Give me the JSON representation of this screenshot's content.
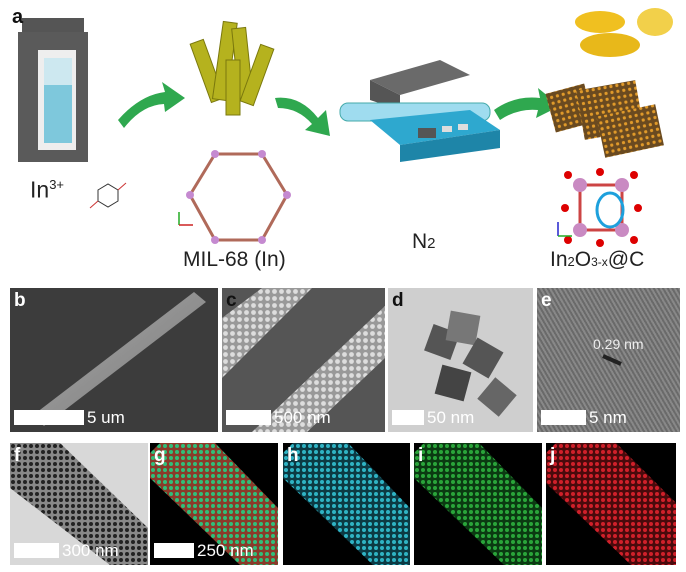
{
  "panel_a": {
    "label": "a",
    "precursor_ion": "In",
    "precursor_charge": "3+",
    "mof_label": "MIL-68 (In)",
    "gas_label": "N",
    "gas_subscript": "2",
    "product_prefix": "In",
    "product_sub1": "2",
    "product_mid": "O",
    "product_sub2": "3-x",
    "product_suffix": "@C"
  },
  "panels": [
    {
      "label": "b",
      "scale_bar": "5 um"
    },
    {
      "label": "c",
      "scale_bar": "500 nm"
    },
    {
      "label": "d",
      "scale_bar": "50 nm"
    },
    {
      "label": "e",
      "scale_bar": "5 nm",
      "annotation": "0.29 nm"
    },
    {
      "label": "f",
      "scale_bar": "300 nm"
    },
    {
      "label": "g",
      "scale_bar": "250 nm"
    },
    {
      "label": "h"
    },
    {
      "label": "i"
    },
    {
      "label": "j"
    }
  ],
  "colors": {
    "arrow": "#2fa84f",
    "rods": "#b5b21e",
    "map_h": "#2fb3c4",
    "map_i": "#2aa53a",
    "map_j": "#d0202a"
  }
}
